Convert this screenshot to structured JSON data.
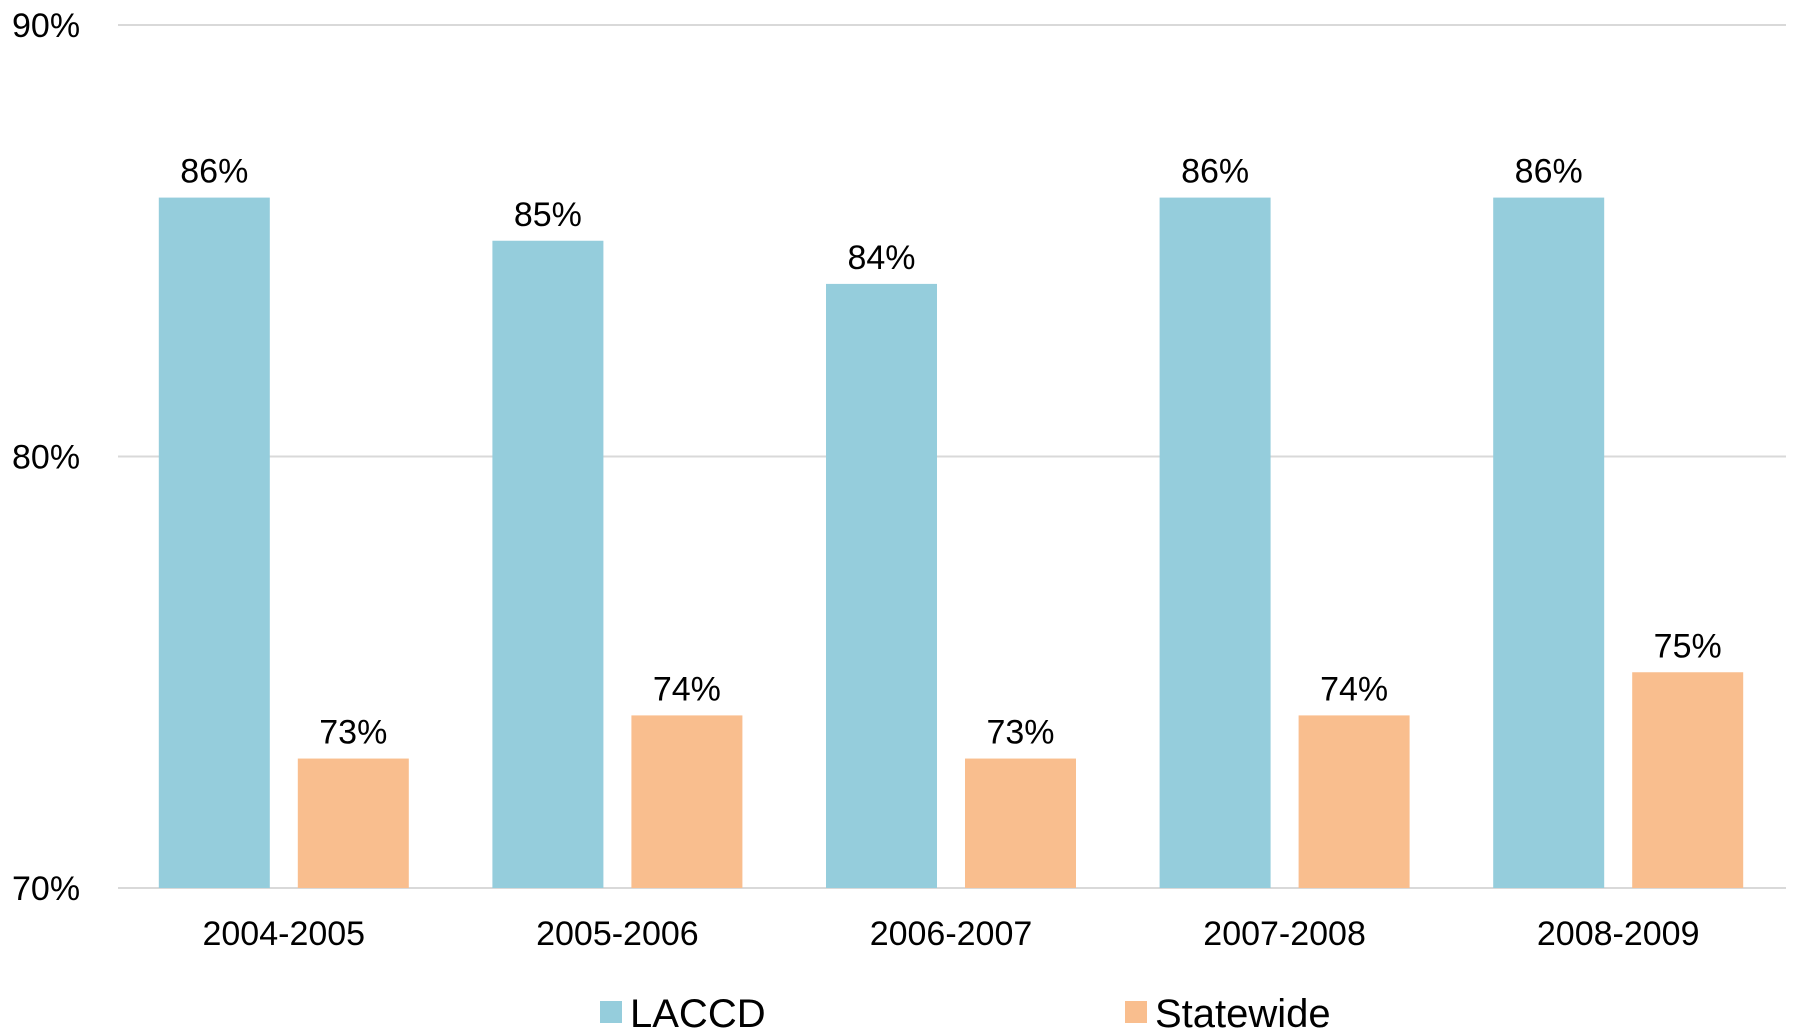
{
  "chart_data": {
    "type": "bar",
    "categories": [
      "2004-2005",
      "2005-2006",
      "2006-2007",
      "2007-2008",
      "2008-2009"
    ],
    "series": [
      {
        "name": "LACCD",
        "values": [
          86,
          85,
          84,
          86,
          86
        ],
        "labels": [
          "86%",
          "85%",
          "84%",
          "86%",
          "86%"
        ],
        "color": "#95CDDC"
      },
      {
        "name": "Statewide",
        "values": [
          73,
          74,
          73,
          74,
          75
        ],
        "labels": [
          "73%",
          "74%",
          "73%",
          "74%",
          "75%"
        ],
        "color": "#F9BE8E"
      }
    ],
    "ylim": [
      70,
      90
    ],
    "yticks": [
      70,
      80,
      90
    ],
    "ytick_labels": [
      "70%",
      "80%",
      "90%"
    ],
    "grid": true,
    "grid_color": "#D9D9D9",
    "legend_position": "bottom"
  }
}
